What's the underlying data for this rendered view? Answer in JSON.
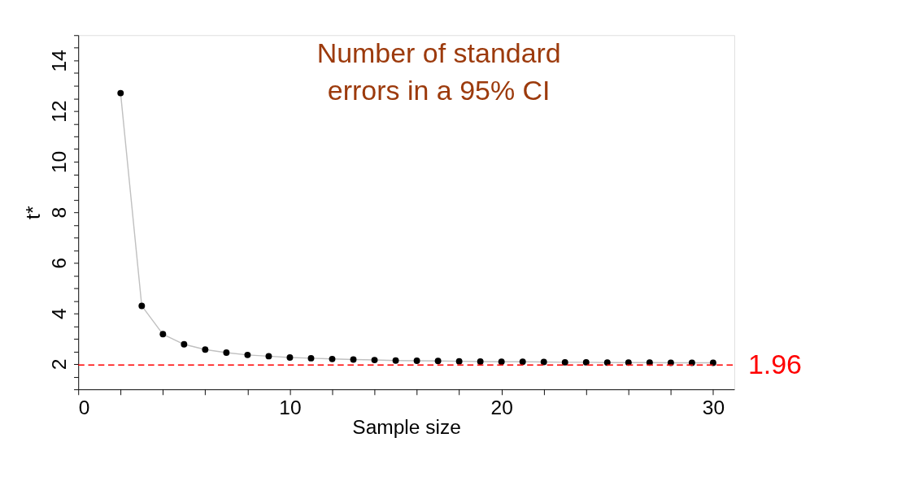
{
  "chart_data": {
    "type": "line",
    "title": "Number of standard errors in a 95% CI",
    "xlabel": "Sample size",
    "ylabel": "t*",
    "x": [
      2,
      3,
      4,
      5,
      6,
      7,
      8,
      9,
      10,
      11,
      12,
      13,
      14,
      15,
      16,
      17,
      18,
      19,
      20,
      21,
      22,
      23,
      24,
      25,
      26,
      27,
      28,
      29,
      30
    ],
    "series": [
      {
        "color": "#c0c0c0",
        "values": [
          12.71,
          4.3,
          3.18,
          2.78,
          2.57,
          2.45,
          2.36,
          2.31,
          2.26,
          2.23,
          2.2,
          2.18,
          2.16,
          2.14,
          2.13,
          2.12,
          2.11,
          2.1,
          2.09,
          2.09,
          2.08,
          2.07,
          2.07,
          2.06,
          2.06,
          2.06,
          2.05,
          2.05,
          2.05
        ],
        "marker": "none"
      },
      {
        "type": "scatter",
        "color": "#000000",
        "values": [
          12.71,
          4.3,
          3.18,
          2.78,
          2.57,
          2.45,
          2.36,
          2.31,
          2.26,
          2.23,
          2.2,
          2.18,
          2.16,
          2.14,
          2.13,
          2.12,
          2.11,
          2.1,
          2.09,
          2.09,
          2.08,
          2.07,
          2.07,
          2.06,
          2.06,
          2.06,
          2.05,
          2.05,
          2.05
        ],
        "marker": "circle"
      }
    ],
    "xlim": [
      0,
      31
    ],
    "ylim": [
      1,
      15
    ],
    "xticks": [
      0,
      {
        "value": 2,
        "label": null
      },
      {
        "value": 4,
        "label": null
      },
      {
        "value": 6,
        "label": null
      },
      {
        "value": 8,
        "label": null
      },
      10,
      {
        "value": 12,
        "label": null
      },
      {
        "value": 14,
        "label": null
      },
      {
        "value": 16,
        "label": null
      },
      {
        "value": 18,
        "label": null
      },
      20,
      {
        "value": 22,
        "label": null
      },
      {
        "value": 24,
        "label": null
      },
      {
        "value": 26,
        "label": null
      },
      {
        "value": 28,
        "label": null
      },
      30
    ],
    "yticks": [
      {
        "value": 1,
        "label": null
      },
      {
        "value": 1.5,
        "label": null
      },
      2,
      {
        "value": 2.5,
        "label": null
      },
      {
        "value": 3,
        "label": null
      },
      {
        "value": 3.5,
        "label": null
      },
      4,
      {
        "value": 4.5,
        "label": null
      },
      {
        "value": 5,
        "label": null
      },
      {
        "value": 5.5,
        "label": null
      },
      6,
      {
        "value": 6.5,
        "label": null
      },
      {
        "value": 7,
        "label": null
      },
      {
        "value": 7.5,
        "label": null
      },
      8,
      {
        "value": 8.5,
        "label": null
      },
      {
        "value": 9,
        "label": null
      },
      {
        "value": 9.5,
        "label": null
      },
      10,
      {
        "value": 10.5,
        "label": null
      },
      {
        "value": 11,
        "label": null
      },
      {
        "value": 11.5,
        "label": null
      },
      12,
      {
        "value": 12.5,
        "label": null
      },
      {
        "value": 13,
        "label": null
      },
      {
        "value": 13.5,
        "label": null
      },
      14,
      {
        "value": 14.5,
        "label": null
      },
      {
        "value": 15,
        "label": null
      }
    ],
    "ref_lines": [
      {
        "axis": "y",
        "value": 1.96,
        "label": "1.96",
        "color": "#ff0000",
        "line_style": "dashed"
      }
    ],
    "grid": false
  }
}
